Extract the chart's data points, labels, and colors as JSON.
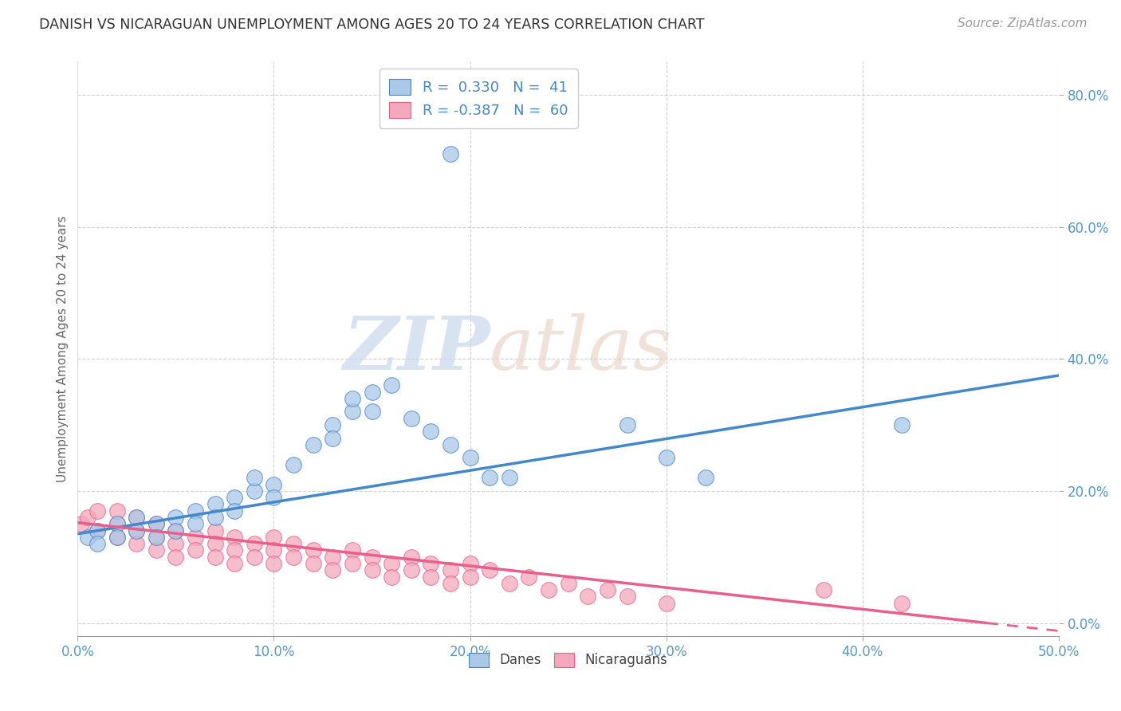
{
  "title": "DANISH VS NICARAGUAN UNEMPLOYMENT AMONG AGES 20 TO 24 YEARS CORRELATION CHART",
  "source": "Source: ZipAtlas.com",
  "ylabel": "Unemployment Among Ages 20 to 24 years",
  "xlim": [
    0.0,
    0.5
  ],
  "ylim": [
    -0.02,
    0.85
  ],
  "dane_R": 0.33,
  "dane_N": 41,
  "nicaraguan_R": -0.387,
  "nicaraguan_N": 60,
  "dane_color": "#aac8e8",
  "nicaraguan_color": "#f4a8bc",
  "dane_line_color": "#4488cc",
  "nicaraguan_line_color": "#e8608a",
  "watermark_zip": "ZIP",
  "watermark_atlas": "atlas",
  "background_color": "#ffffff",
  "grid_color": "#cccccc",
  "axis_label_color": "#5599cc",
  "legend_R_color": "#4488cc",
  "dane_line_y0": 0.135,
  "dane_line_y1": 0.375,
  "nic_line_y0": 0.152,
  "nic_line_y1": -0.012,
  "dane_x": [
    0.005,
    0.01,
    0.01,
    0.02,
    0.02,
    0.03,
    0.03,
    0.04,
    0.04,
    0.05,
    0.05,
    0.06,
    0.06,
    0.07,
    0.07,
    0.08,
    0.08,
    0.09,
    0.09,
    0.1,
    0.1,
    0.11,
    0.12,
    0.13,
    0.13,
    0.14,
    0.14,
    0.15,
    0.15,
    0.16,
    0.17,
    0.18,
    0.19,
    0.2,
    0.21,
    0.22,
    0.28,
    0.3,
    0.32,
    0.42,
    0.19
  ],
  "dane_y": [
    0.13,
    0.14,
    0.12,
    0.15,
    0.13,
    0.16,
    0.14,
    0.15,
    0.13,
    0.16,
    0.14,
    0.17,
    0.15,
    0.18,
    0.16,
    0.19,
    0.17,
    0.2,
    0.22,
    0.21,
    0.19,
    0.24,
    0.27,
    0.3,
    0.28,
    0.32,
    0.34,
    0.35,
    0.32,
    0.36,
    0.31,
    0.29,
    0.27,
    0.25,
    0.22,
    0.22,
    0.3,
    0.25,
    0.22,
    0.3,
    0.71
  ],
  "nic_x": [
    0.002,
    0.005,
    0.01,
    0.01,
    0.02,
    0.02,
    0.02,
    0.03,
    0.03,
    0.03,
    0.04,
    0.04,
    0.04,
    0.05,
    0.05,
    0.05,
    0.06,
    0.06,
    0.07,
    0.07,
    0.07,
    0.08,
    0.08,
    0.08,
    0.09,
    0.09,
    0.1,
    0.1,
    0.1,
    0.11,
    0.11,
    0.12,
    0.12,
    0.13,
    0.13,
    0.14,
    0.14,
    0.15,
    0.15,
    0.16,
    0.16,
    0.17,
    0.17,
    0.18,
    0.18,
    0.19,
    0.19,
    0.2,
    0.2,
    0.21,
    0.22,
    0.23,
    0.24,
    0.25,
    0.26,
    0.27,
    0.28,
    0.3,
    0.38,
    0.42
  ],
  "nic_y": [
    0.15,
    0.16,
    0.17,
    0.14,
    0.15,
    0.17,
    0.13,
    0.16,
    0.14,
    0.12,
    0.15,
    0.13,
    0.11,
    0.14,
    0.12,
    0.1,
    0.13,
    0.11,
    0.14,
    0.12,
    0.1,
    0.13,
    0.11,
    0.09,
    0.12,
    0.1,
    0.13,
    0.11,
    0.09,
    0.12,
    0.1,
    0.11,
    0.09,
    0.1,
    0.08,
    0.11,
    0.09,
    0.1,
    0.08,
    0.09,
    0.07,
    0.1,
    0.08,
    0.09,
    0.07,
    0.08,
    0.06,
    0.09,
    0.07,
    0.08,
    0.06,
    0.07,
    0.05,
    0.06,
    0.04,
    0.05,
    0.04,
    0.03,
    0.05,
    0.03
  ]
}
